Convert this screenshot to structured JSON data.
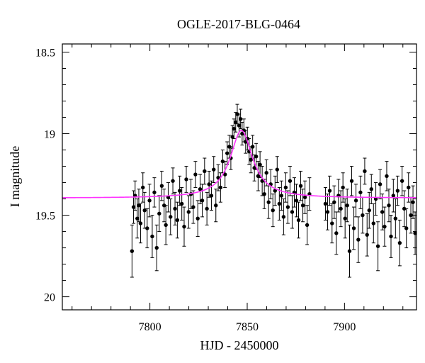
{
  "chart_data": {
    "type": "scatter",
    "title": "OGLE-2017-BLG-0464",
    "xlabel": "HJD - 2450000",
    "ylabel": "I magnitude",
    "xlim": [
      7755,
      7937
    ],
    "ylim": [
      18.45,
      20.08
    ],
    "y_inverted": true,
    "xticks": [
      7800,
      7850,
      7900
    ],
    "yticks": [
      18.5,
      19,
      19.5,
      20
    ],
    "grid": false,
    "legend": "none",
    "colors": {
      "points": "#000000",
      "model": "#ff33ff",
      "axes": "#000000"
    },
    "series": [
      {
        "kind": "observations",
        "x": [
          7790.8,
          7791.6,
          7792.4,
          7793.5,
          7794.3,
          7795.2,
          7796.4,
          7797.3,
          7798.6,
          7799.8,
          7801.2,
          7802.3,
          7803.5,
          7804.8,
          7806.1,
          7807.3,
          7808.2,
          7809.4,
          7810.6,
          7811.8,
          7812.9,
          7814.1,
          7815.3,
          7816.4,
          7817.6,
          7818.7,
          7819.9,
          7821.1,
          7822.3,
          7823.4,
          7824.6,
          7825.8,
          7826.9,
          7828.1,
          7829.3,
          7830.4,
          7831.6,
          7832.8,
          7833.9,
          7835.1,
          7836.3,
          7837.4,
          7838.6,
          7839.7,
          7840.8,
          7841.6,
          7842.4,
          7843.2,
          7844.1,
          7844.9,
          7845.8,
          7846.6,
          7847.4,
          7848.3,
          7849.2,
          7850.1,
          7851.0,
          7851.9,
          7852.8,
          7853.7,
          7854.6,
          7855.6,
          7856.6,
          7857.7,
          7858.8,
          7859.9,
          7861.0,
          7862.1,
          7863.2,
          7864.3,
          7865.4,
          7866.5,
          7867.6,
          7868.7,
          7869.8,
          7870.9,
          7872.0,
          7873.1,
          7874.2,
          7875.3,
          7876.4,
          7877.5,
          7878.6,
          7879.7,
          7880.8,
          7882.0,
          7890.2,
          7891.3,
          7892.4,
          7893.6,
          7894.7,
          7895.8,
          7896.9,
          7898.1,
          7899.2,
          7900.3,
          7901.4,
          7902.6,
          7903.7,
          7904.8,
          7905.9,
          7907.1,
          7908.2,
          7909.3,
          7910.4,
          7911.6,
          7912.7,
          7913.8,
          7914.9,
          7916.1,
          7917.2,
          7918.3,
          7919.4,
          7920.6,
          7921.7,
          7922.8,
          7923.9,
          7925.1,
          7926.2,
          7927.3,
          7928.4,
          7929.6,
          7930.7,
          7931.8,
          7932.9,
          7934.1,
          7935.2,
          7936.3
        ],
        "y": [
          19.72,
          19.45,
          19.38,
          19.52,
          19.44,
          19.55,
          19.33,
          19.47,
          19.58,
          19.41,
          19.63,
          19.36,
          19.7,
          19.49,
          19.32,
          19.44,
          19.56,
          19.39,
          19.51,
          19.29,
          19.46,
          19.53,
          19.35,
          19.43,
          19.57,
          19.28,
          19.48,
          19.37,
          19.45,
          19.25,
          19.52,
          19.34,
          19.41,
          19.23,
          19.46,
          19.31,
          19.38,
          19.22,
          19.44,
          19.27,
          19.33,
          19.17,
          19.25,
          19.12,
          19.08,
          19.15,
          19.02,
          18.97,
          18.93,
          18.88,
          18.95,
          18.91,
          19.0,
          18.98,
          19.05,
          19.03,
          19.11,
          19.16,
          19.08,
          19.21,
          19.14,
          19.26,
          19.19,
          19.29,
          19.37,
          19.24,
          19.42,
          19.31,
          19.47,
          19.35,
          19.22,
          19.43,
          19.38,
          19.51,
          19.33,
          19.45,
          19.29,
          19.48,
          19.36,
          19.41,
          19.53,
          19.32,
          19.44,
          19.39,
          19.56,
          19.37,
          19.43,
          19.48,
          19.35,
          19.55,
          19.42,
          19.61,
          19.38,
          19.46,
          19.33,
          19.52,
          19.44,
          19.72,
          19.29,
          19.58,
          19.41,
          19.65,
          19.36,
          19.5,
          19.23,
          19.62,
          19.47,
          19.34,
          19.55,
          19.4,
          19.69,
          19.31,
          19.48,
          19.57,
          19.26,
          19.44,
          19.63,
          19.38,
          19.52,
          19.35,
          19.67,
          19.29,
          19.46,
          19.58,
          19.33,
          19.5,
          19.42,
          19.61
        ],
        "err": [
          0.16,
          0.1,
          0.09,
          0.12,
          0.1,
          0.12,
          0.09,
          0.11,
          0.12,
          0.1,
          0.13,
          0.09,
          0.14,
          0.11,
          0.09,
          0.1,
          0.12,
          0.09,
          0.11,
          0.08,
          0.1,
          0.11,
          0.09,
          0.1,
          0.12,
          0.08,
          0.1,
          0.09,
          0.1,
          0.08,
          0.11,
          0.09,
          0.1,
          0.08,
          0.1,
          0.08,
          0.09,
          0.08,
          0.1,
          0.08,
          0.09,
          0.07,
          0.08,
          0.07,
          0.07,
          0.07,
          0.07,
          0.06,
          0.06,
          0.06,
          0.07,
          0.06,
          0.07,
          0.07,
          0.07,
          0.07,
          0.08,
          0.08,
          0.07,
          0.08,
          0.08,
          0.09,
          0.08,
          0.09,
          0.09,
          0.08,
          0.1,
          0.09,
          0.1,
          0.09,
          0.08,
          0.1,
          0.09,
          0.11,
          0.09,
          0.1,
          0.09,
          0.1,
          0.09,
          0.1,
          0.11,
          0.09,
          0.1,
          0.1,
          0.12,
          0.1,
          0.1,
          0.11,
          0.09,
          0.12,
          0.1,
          0.13,
          0.1,
          0.11,
          0.09,
          0.12,
          0.1,
          0.16,
          0.09,
          0.13,
          0.1,
          0.14,
          0.1,
          0.11,
          0.08,
          0.13,
          0.11,
          0.09,
          0.12,
          0.1,
          0.15,
          0.09,
          0.11,
          0.12,
          0.09,
          0.1,
          0.13,
          0.1,
          0.12,
          0.09,
          0.14,
          0.09,
          0.11,
          0.12,
          0.09,
          0.11,
          0.1,
          0.13
        ]
      },
      {
        "kind": "model",
        "baseline": 19.395,
        "peak_mag": 18.98,
        "t0": 7847.0,
        "width": 7.0,
        "x_range": [
          7755,
          7937
        ]
      }
    ]
  }
}
